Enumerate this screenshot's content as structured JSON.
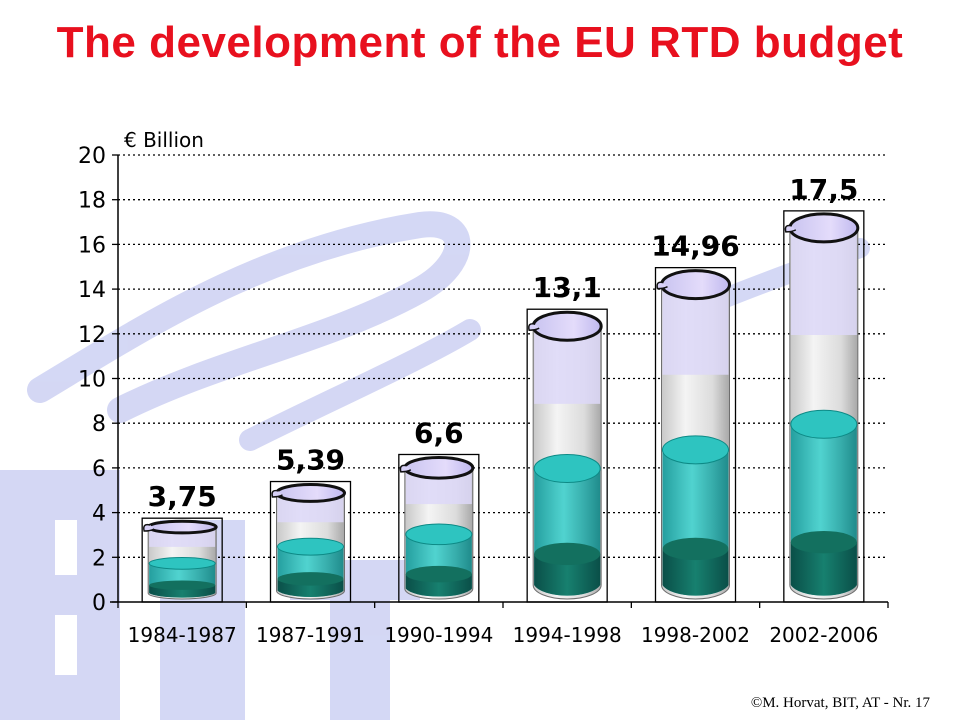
{
  "title": "The development of the EU RTD budget",
  "footer": "©M. Horvat, BIT, AT  - Nr. 17",
  "colors": {
    "title": "#e8101e",
    "watermark": "#c9cdf2",
    "liquid": "#1fb5b5",
    "liquid_dark": "#0e6e62",
    "glass_top": "#d7d0f7"
  },
  "chart_data": {
    "type": "bar",
    "unit_label": "€ Billion",
    "categories": [
      "1984-1987",
      "1987-1991",
      "1990-1994",
      "1994-1998",
      "1998-2002",
      "2002-2006"
    ],
    "values": [
      3.75,
      5.39,
      6.6,
      13.1,
      14.96,
      17.5
    ],
    "value_labels": [
      "3,75",
      "5,39",
      "6,6",
      "13,1",
      "14,96",
      "17,5"
    ],
    "ylim": [
      0,
      20
    ],
    "yticks": [
      "0",
      "2",
      "4",
      "6",
      "8",
      "10",
      "12",
      "14",
      "16",
      "18",
      "20"
    ],
    "grid": "dotted horizontal",
    "xlabel": "",
    "ylabel": ""
  }
}
